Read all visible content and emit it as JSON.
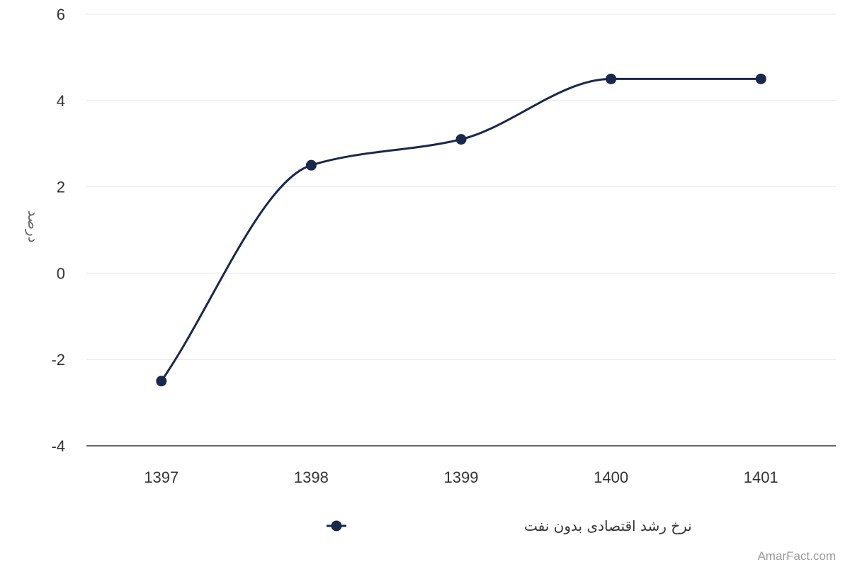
{
  "chart_data": {
    "type": "line",
    "smooth": true,
    "x": [
      "1397",
      "1398",
      "1399",
      "1400",
      "1401"
    ],
    "series": [
      {
        "name": "نرخ رشد اقتصادی بدون نفت",
        "values": [
          -2.5,
          2.5,
          3.1,
          4.5,
          4.5
        ],
        "color": "#19284b"
      }
    ],
    "title": "",
    "xlabel": "",
    "ylabel": "درصد",
    "ylim": [
      -4,
      6
    ],
    "yticks": [
      -4,
      -2,
      0,
      2,
      4,
      6
    ],
    "grid": true,
    "legend": "bottom-center"
  },
  "credit": "AmarFact.com"
}
